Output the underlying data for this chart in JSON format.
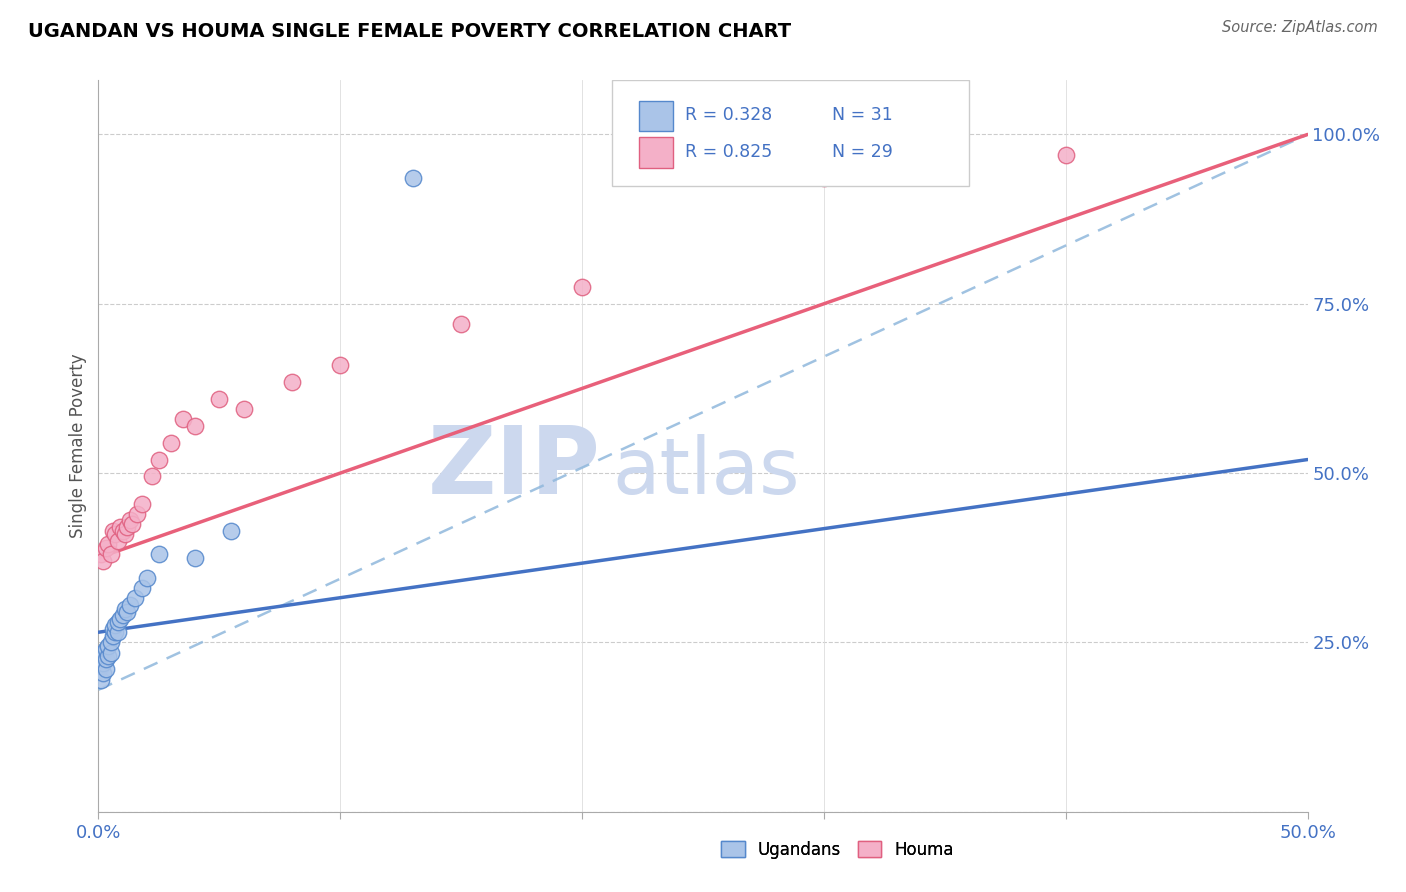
{
  "title": "UGANDAN VS HOUMA SINGLE FEMALE POVERTY CORRELATION CHART",
  "source": "Source: ZipAtlas.com",
  "ylabel": "Single Female Poverty",
  "xlim": [
    0.0,
    0.5
  ],
  "ylim": [
    0.0,
    1.08
  ],
  "xticks": [
    0.0,
    0.1,
    0.2,
    0.3,
    0.4,
    0.5
  ],
  "xticklabels": [
    "0.0%",
    "",
    "",
    "",
    "",
    "50.0%"
  ],
  "yticks": [
    0.0,
    0.25,
    0.5,
    0.75,
    1.0
  ],
  "yticklabels": [
    "",
    "25.0%",
    "50.0%",
    "75.0%",
    "100.0%"
  ],
  "legend_r_blue": "R = 0.328",
  "legend_n_blue": "N = 31",
  "legend_r_pink": "R = 0.825",
  "legend_n_pink": "N = 29",
  "blue_scatter_color": "#aac4e8",
  "blue_edge_color": "#5588cc",
  "pink_scatter_color": "#f4b0c8",
  "pink_edge_color": "#e06080",
  "blue_line_color": "#4472c4",
  "pink_line_color": "#e8607a",
  "dashed_line_color": "#90b8dc",
  "watermark_color": "#ccd8ee",
  "blue_line": [
    0.0,
    0.265,
    0.5,
    0.52
  ],
  "pink_line": [
    0.0,
    0.375,
    0.5,
    1.0
  ],
  "dashed_line": [
    0.0,
    0.18,
    0.5,
    1.0
  ],
  "ugandan_x": [
    0.001,
    0.001,
    0.001,
    0.002,
    0.002,
    0.002,
    0.003,
    0.003,
    0.003,
    0.004,
    0.004,
    0.005,
    0.005,
    0.006,
    0.006,
    0.007,
    0.007,
    0.008,
    0.008,
    0.009,
    0.01,
    0.011,
    0.012,
    0.013,
    0.015,
    0.018,
    0.02,
    0.025,
    0.04,
    0.055,
    0.13
  ],
  "ugandan_y": [
    0.195,
    0.215,
    0.225,
    0.205,
    0.22,
    0.235,
    0.21,
    0.225,
    0.24,
    0.23,
    0.245,
    0.235,
    0.25,
    0.26,
    0.27,
    0.265,
    0.275,
    0.265,
    0.28,
    0.285,
    0.29,
    0.3,
    0.295,
    0.305,
    0.315,
    0.33,
    0.345,
    0.38,
    0.375,
    0.415,
    0.935
  ],
  "houma_x": [
    0.001,
    0.002,
    0.003,
    0.004,
    0.005,
    0.006,
    0.007,
    0.008,
    0.009,
    0.01,
    0.011,
    0.012,
    0.013,
    0.014,
    0.016,
    0.018,
    0.022,
    0.025,
    0.03,
    0.035,
    0.04,
    0.05,
    0.06,
    0.08,
    0.1,
    0.15,
    0.2,
    0.3,
    0.4
  ],
  "houma_y": [
    0.38,
    0.37,
    0.39,
    0.395,
    0.38,
    0.415,
    0.41,
    0.4,
    0.42,
    0.415,
    0.41,
    0.42,
    0.43,
    0.425,
    0.44,
    0.455,
    0.495,
    0.52,
    0.545,
    0.58,
    0.57,
    0.61,
    0.595,
    0.635,
    0.66,
    0.72,
    0.775,
    0.935,
    0.97
  ]
}
